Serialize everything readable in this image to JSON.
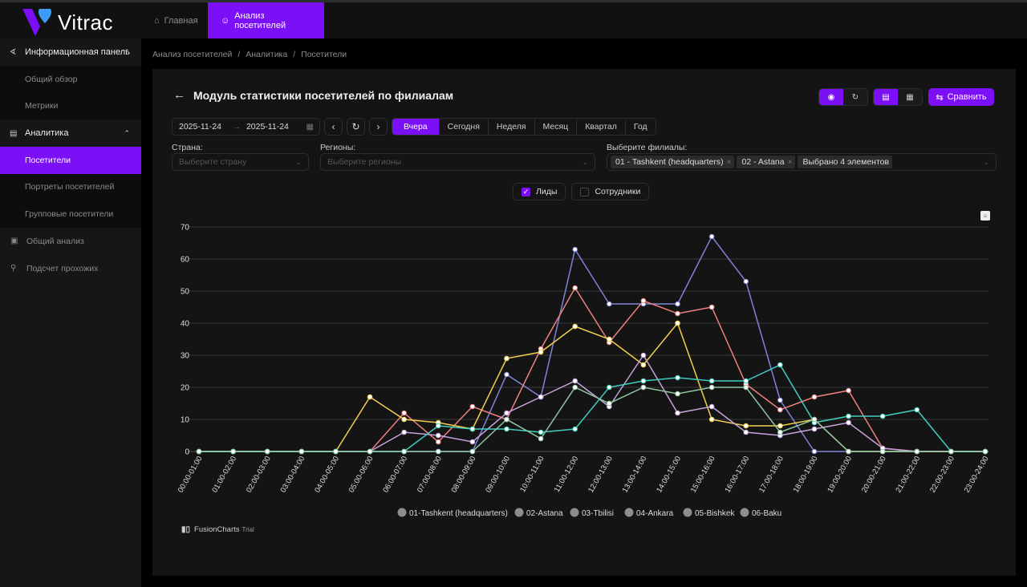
{
  "app": {
    "logo_text": "Vitrac",
    "brand_color": "#7b0ff5"
  },
  "header": {
    "tabs": [
      {
        "label": "Главная",
        "icon": "home-icon",
        "active": false
      },
      {
        "label": "Анализ посетителей",
        "icon": "smile-icon",
        "active": true
      }
    ]
  },
  "sidebar": {
    "groups": [
      {
        "label": "Информационная панель",
        "icon": "dashboard-chart-icon",
        "expanded": true,
        "items": [
          {
            "label": "Общий обзор"
          },
          {
            "label": "Метрики"
          }
        ]
      },
      {
        "label": "Аналитика",
        "icon": "area-chart-icon",
        "expanded": true,
        "items": [
          {
            "label": "Посетители",
            "active": true
          },
          {
            "label": "Портреты посетителей"
          },
          {
            "label": "Групповые посетители"
          }
        ]
      }
    ],
    "plain": [
      {
        "label": "Общий анализ",
        "icon": "report-icon"
      },
      {
        "label": "Подсчет прохожих",
        "icon": "person-icon"
      }
    ]
  },
  "breadcrumb": [
    "Анализ посетителей",
    "Аналитика",
    "Посетители"
  ],
  "page": {
    "title": "Модуль статистики посетителей по филиалам",
    "compare_label": "Сравнить",
    "date_from": "2025-11-24",
    "date_to": "2025-11-24",
    "periods": [
      {
        "label": "Вчера",
        "active": true
      },
      {
        "label": "Сегодня"
      },
      {
        "label": "Неделя"
      },
      {
        "label": "Месяц"
      },
      {
        "label": "Квартал"
      },
      {
        "label": "Год"
      }
    ],
    "filters": {
      "country_label": "Страна:",
      "country_placeholder": "Выберите страну",
      "regions_label": "Регионы:",
      "regions_placeholder": "Выберите регионы",
      "branches_label": "Выберите филиалы:",
      "branch_tags": [
        "01 - Tashkent (headquarters)",
        "02 - Astana"
      ],
      "branch_more": "Выбрано 4 элементов"
    },
    "checkboxes": [
      {
        "label": "Лиды",
        "checked": true
      },
      {
        "label": "Сотрудники",
        "checked": false
      }
    ],
    "fusioncharts_label": "FusionCharts",
    "fusioncharts_trial": "Trial"
  },
  "chart_data": {
    "type": "line",
    "title": "",
    "xlabel": "",
    "ylabel": "",
    "ylim": [
      0,
      70
    ],
    "yticks": [
      0,
      10,
      20,
      30,
      40,
      50,
      60,
      70
    ],
    "grid": true,
    "legend_position": "bottom",
    "categories": [
      "00:00-01:00",
      "01:00-02:00",
      "02:00-03:00",
      "03:00-04:00",
      "04:00-05:00",
      "05:00-06:00",
      "06:00-07:00",
      "07:00-08:00",
      "08:00-09:00",
      "09:00-10:00",
      "10:00-11:00",
      "11:00-12:00",
      "12:00-13:00",
      "13:00-14:00",
      "14:00-15:00",
      "15:00-16:00",
      "16:00-17:00",
      "17:00-18:00",
      "18:00-19:00",
      "19:00-20:00",
      "20:00-21:00",
      "21:00-22:00",
      "22:00-23:00",
      "23:00-24:00"
    ],
    "legend": [
      "01-Tashkent (headquarters)",
      "02-Astana",
      "03-Tbilisi",
      "04-Ankara",
      "05-Bishkek",
      "06-Baku"
    ],
    "series": [
      {
        "name": "series-indigo",
        "color": "#7f83d8",
        "values": [
          0,
          0,
          0,
          0,
          0,
          0,
          0,
          0,
          0,
          24,
          17,
          63,
          46,
          46,
          46,
          67,
          53,
          16,
          0,
          0,
          0,
          0,
          0,
          0
        ]
      },
      {
        "name": "series-salmon",
        "color": "#ef8080",
        "values": [
          0,
          0,
          0,
          0,
          0,
          0,
          12,
          3,
          14,
          10,
          32,
          51,
          34,
          47,
          43,
          45,
          21,
          13,
          17,
          19,
          1,
          0,
          0,
          0
        ]
      },
      {
        "name": "series-yellow",
        "color": "#f2cf4c",
        "values": [
          0,
          0,
          0,
          0,
          0,
          17,
          10,
          9,
          7,
          29,
          31,
          39,
          35,
          27,
          40,
          10,
          8,
          8,
          10,
          0,
          0,
          0,
          0,
          0
        ]
      },
      {
        "name": "series-lavender",
        "color": "#c7a3dc",
        "values": [
          0,
          0,
          0,
          0,
          0,
          0,
          6,
          5,
          3,
          12,
          17,
          22,
          14,
          30,
          12,
          14,
          6,
          5,
          7,
          9,
          1,
          0,
          0,
          0
        ]
      },
      {
        "name": "series-teal",
        "color": "#3fcfbe",
        "values": [
          0,
          0,
          0,
          0,
          0,
          0,
          0,
          8,
          7,
          7,
          6,
          7,
          20,
          22,
          23,
          22,
          22,
          27,
          9,
          11,
          11,
          13,
          0,
          0
        ]
      },
      {
        "name": "series-sage",
        "color": "#8fc6a2",
        "values": [
          0,
          0,
          0,
          0,
          0,
          0,
          0,
          0,
          0,
          10,
          4,
          20,
          15,
          20,
          18,
          20,
          20,
          6,
          10,
          0,
          0,
          0,
          0,
          0
        ]
      }
    ]
  }
}
